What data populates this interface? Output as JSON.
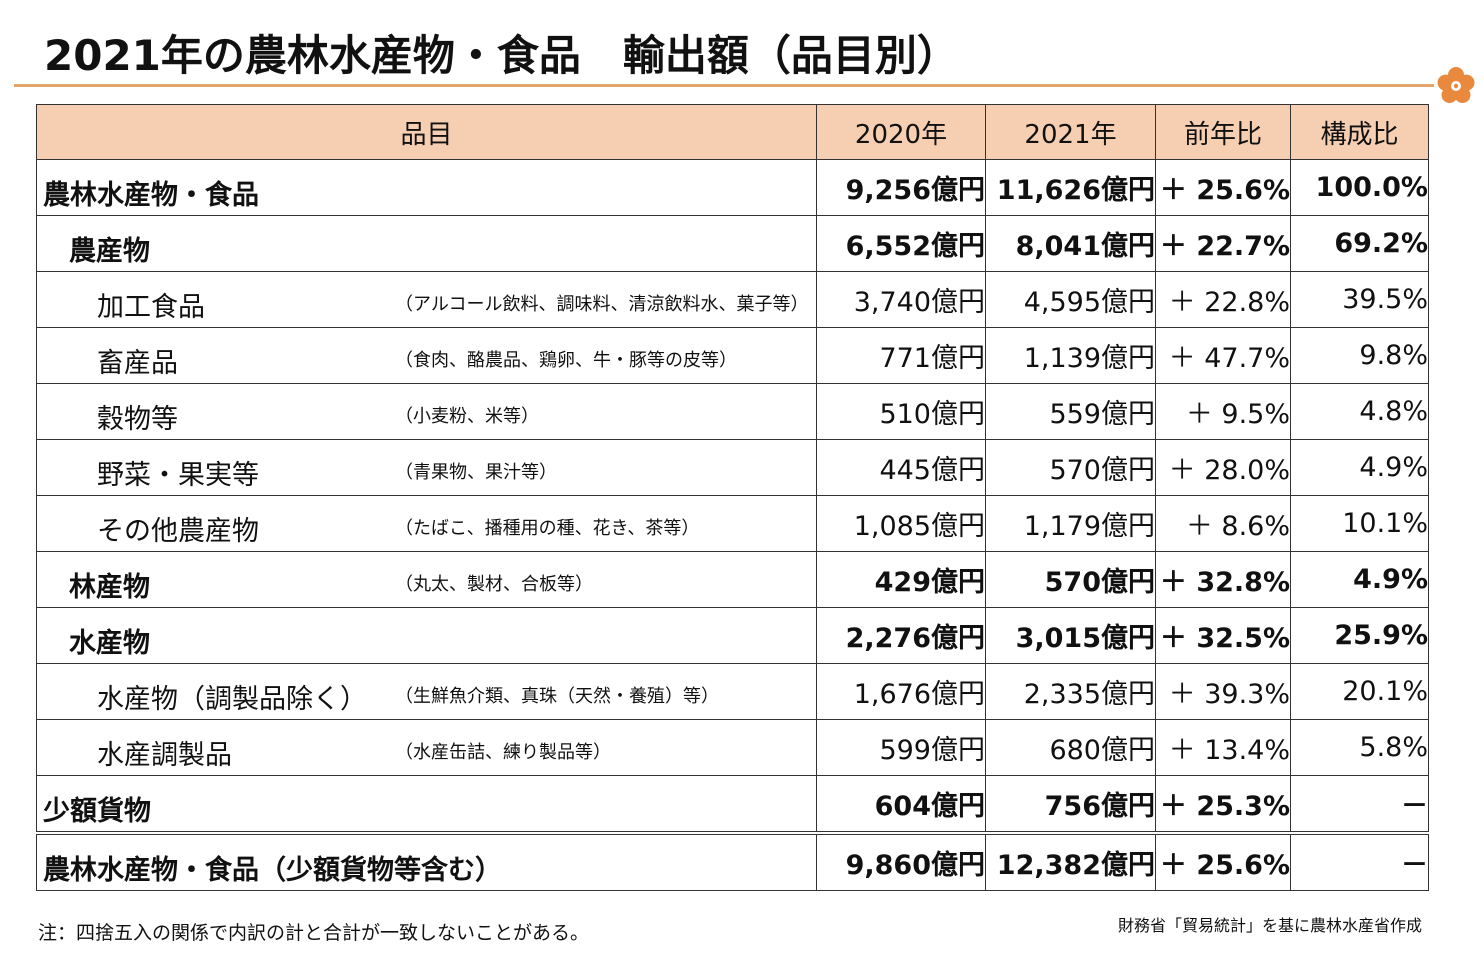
{
  "title": "2021年の農林水産物・食品　輸出額（品目別）",
  "headers": {
    "item": "品目",
    "y2020": "2020年",
    "y2021": "2021年",
    "yoy": "前年比",
    "share": "構成比"
  },
  "rows": [
    {
      "label": "農林水産物・食品",
      "note": "",
      "v2020": "9,256億円",
      "v2021": "11,626億円",
      "yoy": "＋ 25.6%",
      "share": "100.0%"
    },
    {
      "label": "農産物",
      "note": "",
      "v2020": "6,552億円",
      "v2021": "8,041億円",
      "yoy": "＋ 22.7%",
      "share": "69.2%"
    },
    {
      "label": "加工食品",
      "note": "（アルコール飲料、調味料、清涼飲料水、菓子等）",
      "v2020": "3,740億円",
      "v2021": "4,595億円",
      "yoy": "＋ 22.8%",
      "share": "39.5%"
    },
    {
      "label": "畜産品",
      "note": "（食肉、酪農品、鶏卵、牛・豚等の皮等）",
      "v2020": "771億円",
      "v2021": "1,139億円",
      "yoy": "＋ 47.7%",
      "share": "9.8%"
    },
    {
      "label": "穀物等",
      "note": "（小麦粉、米等）",
      "v2020": "510億円",
      "v2021": "559億円",
      "yoy": "＋ 9.5%",
      "share": "4.8%"
    },
    {
      "label": "野菜・果実等",
      "note": "（青果物、果汁等）",
      "v2020": "445億円",
      "v2021": "570億円",
      "yoy": "＋ 28.0%",
      "share": "4.9%"
    },
    {
      "label": "その他農産物",
      "note": "（たばこ、播種用の種、花き、茶等）",
      "v2020": "1,085億円",
      "v2021": "1,179億円",
      "yoy": "＋ 8.6%",
      "share": "10.1%"
    },
    {
      "label": "林産物",
      "note": "（丸太、製材、合板等）",
      "v2020": "429億円",
      "v2021": "570億円",
      "yoy": "＋ 32.8%",
      "share": "4.9%"
    },
    {
      "label": "水産物",
      "note": "",
      "v2020": "2,276億円",
      "v2021": "3,015億円",
      "yoy": "＋ 32.5%",
      "share": "25.9%"
    },
    {
      "label": "水産物（調製品除く）",
      "note": "（生鮮魚介類、真珠（天然・養殖）等）",
      "v2020": "1,676億円",
      "v2021": "2,335億円",
      "yoy": "＋ 39.3%",
      "share": "20.1%"
    },
    {
      "label": "水産調製品",
      "note": "（水産缶詰、練り製品等）",
      "v2020": "599億円",
      "v2021": "680億円",
      "yoy": "＋ 13.4%",
      "share": "5.8%"
    },
    {
      "label": "少額貨物",
      "note": "",
      "v2020": "604億円",
      "v2021": "756億円",
      "yoy": "＋ 25.3%",
      "share": "－"
    },
    {
      "label": "農林水産物・食品（少額貨物等含む）",
      "note": "",
      "v2020": "9,860億円",
      "v2021": "12,382億円",
      "yoy": "＋ 25.6%",
      "share": "－"
    }
  ],
  "footnote": "注：四捨五入の関係で内訳の計と合計が一致しないことがある。",
  "source": "財務省「貿易統計」を基に農林水産省作成",
  "colors": {
    "header_bg": "#f6cfb2",
    "rule": "#e3a56c",
    "flower": "#e8893e"
  }
}
